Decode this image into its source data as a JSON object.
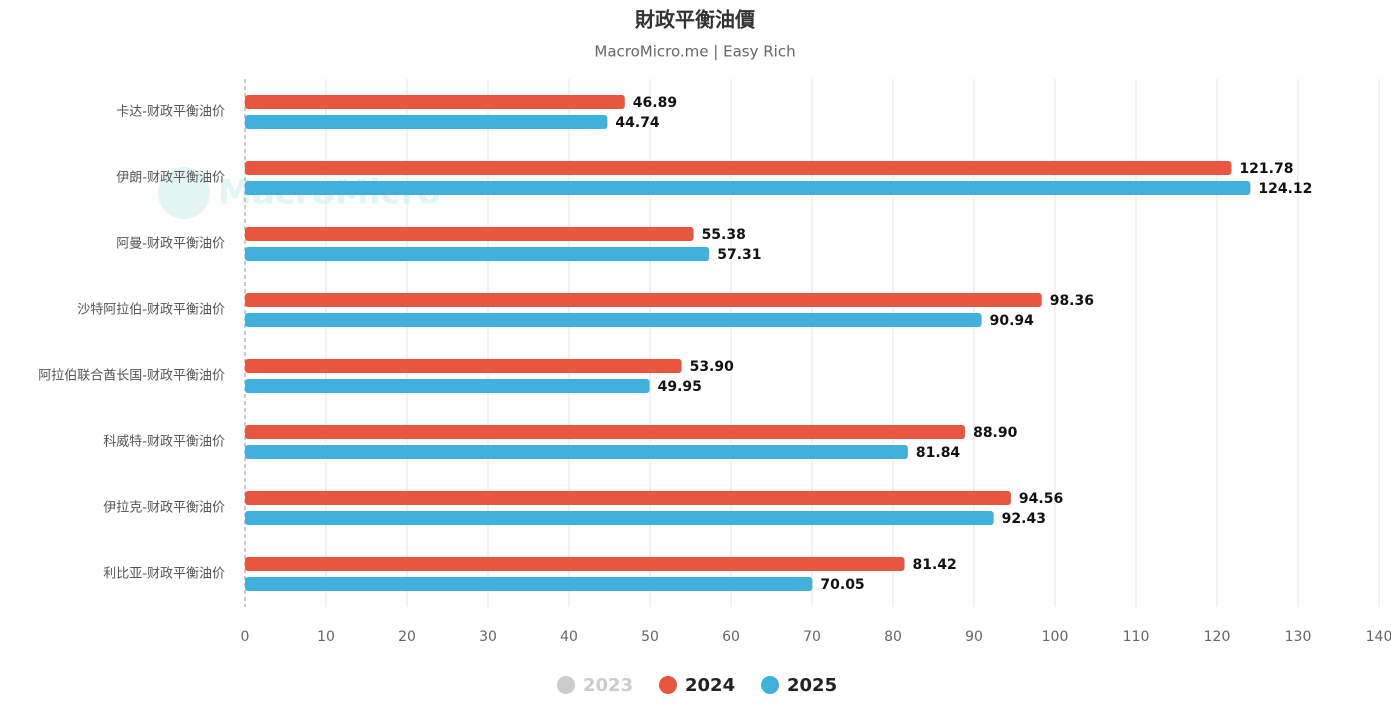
{
  "chart_data": {
    "type": "bar",
    "orientation": "horizontal",
    "title": "財政平衡油價",
    "subtitle": "MacroMicro.me | Easy Rich",
    "watermark": "MacroMicro",
    "categories": [
      "卡达-财政平衡油价",
      "伊朗-财政平衡油价",
      "阿曼-财政平衡油价",
      "沙特阿拉伯-财政平衡油价",
      "阿拉伯联合酋长国-财政平衡油价",
      "科威特-财政平衡油价",
      "伊拉克-财政平衡油价",
      "利比亚-财政平衡油价"
    ],
    "series": [
      {
        "name": "2023",
        "color": "#cccccc",
        "visible": false,
        "values": [
          null,
          null,
          null,
          null,
          null,
          null,
          null,
          null
        ]
      },
      {
        "name": "2024",
        "color": "#e8563f",
        "visible": true,
        "values": [
          46.89,
          121.78,
          55.38,
          98.36,
          53.9,
          88.9,
          94.56,
          81.42
        ],
        "value_labels": [
          "46.89",
          "121.78",
          "55.38",
          "98.36",
          "53.90",
          "88.90",
          "94.56",
          "81.42"
        ]
      },
      {
        "name": "2025",
        "color": "#3fb1dc",
        "visible": true,
        "values": [
          44.74,
          124.12,
          57.31,
          90.94,
          49.95,
          81.84,
          92.43,
          70.05
        ],
        "value_labels": [
          "44.74",
          "124.12",
          "57.31",
          "90.94",
          "49.95",
          "81.84",
          "92.43",
          "70.05"
        ]
      }
    ],
    "xlim": [
      0,
      140
    ],
    "xticks": [
      0,
      10,
      20,
      30,
      40,
      50,
      60,
      70,
      80,
      90,
      100,
      110,
      120,
      130,
      140
    ],
    "grid": true,
    "legend": "bottom"
  }
}
